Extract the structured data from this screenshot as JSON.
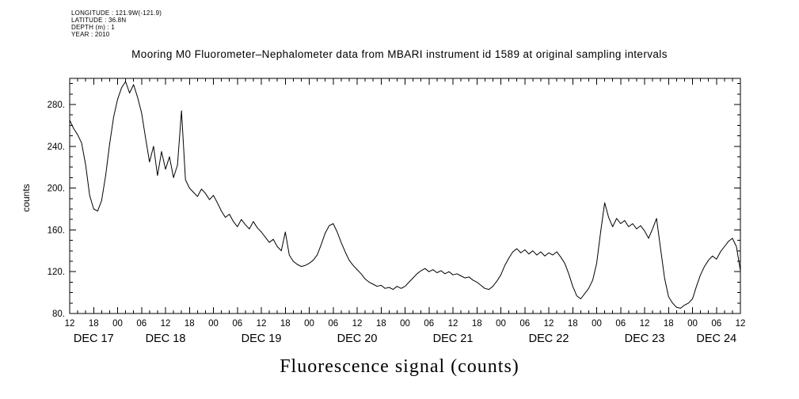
{
  "metadata_block": {
    "lines": [
      "LONGITUDE : 121.9W(-121.9)",
      "LATITUDE : 36.8N",
      "DEPTH (m) : 1",
      "YEAR : 2010"
    ]
  },
  "chart_data": {
    "type": "line",
    "title": "Mooring M0 Fluorometer–Nephalometer data from MBARI instrument id 1589 at original sampling intervals",
    "xlabel": "Fluorescence signal (counts)",
    "ylabel": "counts",
    "x_start": "DEC 17 12:00",
    "x_end": "DEC 24 12:00",
    "x_total_hours": 168,
    "x_tick_interval_hours": 6,
    "x_tick_labels": [
      "12",
      "18",
      "00",
      "06",
      "12",
      "18",
      "00",
      "06",
      "12",
      "18",
      "00",
      "06",
      "12",
      "18",
      "00",
      "06",
      "12",
      "18",
      "00",
      "06",
      "12",
      "18",
      "00",
      "06",
      "12",
      "18",
      "00",
      "06",
      "12"
    ],
    "date_labels": [
      {
        "label": "DEC 17",
        "hour": 6
      },
      {
        "label": "DEC 18",
        "hour": 24
      },
      {
        "label": "DEC 19",
        "hour": 48
      },
      {
        "label": "DEC 20",
        "hour": 72
      },
      {
        "label": "DEC 21",
        "hour": 96
      },
      {
        "label": "DEC 22",
        "hour": 120
      },
      {
        "label": "DEC 23",
        "hour": 144
      },
      {
        "label": "DEC 24",
        "hour": 162
      }
    ],
    "ylim": [
      80,
      305
    ],
    "y_ticks": [
      80,
      120,
      160,
      200,
      240,
      280
    ],
    "y_tick_labels": [
      "80.",
      "120.",
      "160.",
      "200.",
      "240.",
      "280."
    ],
    "grid": false,
    "line_color": "#000000",
    "background_color": "#ffffff",
    "series": [
      {
        "name": "fluorescence (counts)",
        "sample_interval_hours": 1,
        "values": [
          265,
          257,
          251,
          243,
          222,
          193,
          180,
          178,
          188,
          212,
          242,
          268,
          285,
          296,
          302,
          291,
          299,
          287,
          272,
          248,
          225,
          240,
          212,
          235,
          218,
          230,
          210,
          222,
          274,
          208,
          200,
          196,
          192,
          199,
          195,
          189,
          193,
          186,
          178,
          172,
          175,
          168,
          163,
          170,
          165,
          161,
          168,
          162,
          158,
          153,
          148,
          151,
          144,
          140,
          158,
          136,
          130,
          127,
          125,
          126,
          128,
          131,
          136,
          146,
          157,
          164,
          166,
          158,
          148,
          139,
          131,
          126,
          122,
          118,
          113,
          110,
          108,
          106,
          107,
          104,
          105,
          103,
          106,
          104,
          106,
          110,
          114,
          118,
          121,
          123,
          120,
          122,
          119,
          121,
          118,
          120,
          117,
          118,
          116,
          114,
          115,
          112,
          110,
          107,
          104,
          103,
          106,
          111,
          117,
          126,
          133,
          139,
          142,
          138,
          141,
          137,
          140,
          136,
          139,
          135,
          138,
          136,
          139,
          134,
          128,
          118,
          106,
          97,
          94,
          99,
          104,
          112,
          128,
          158,
          186,
          172,
          163,
          171,
          166,
          169,
          163,
          166,
          161,
          164,
          159,
          152,
          161,
          171,
          142,
          114,
          96,
          90,
          86,
          85,
          88,
          90,
          94,
          106,
          117,
          125,
          131,
          135,
          132,
          139,
          144,
          149,
          152,
          144,
          121
        ]
      }
    ]
  }
}
